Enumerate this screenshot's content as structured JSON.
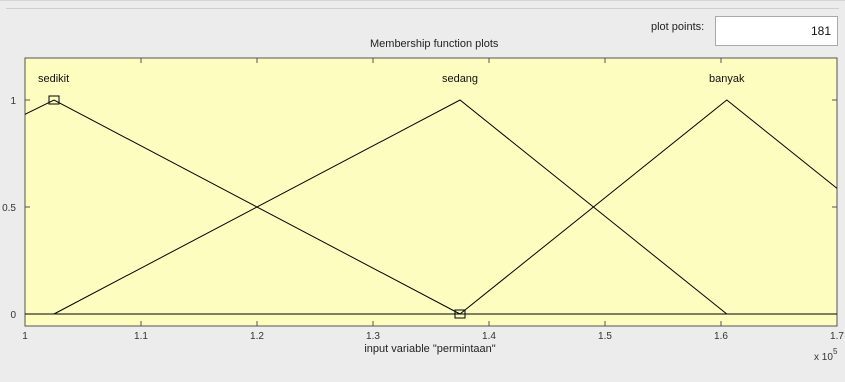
{
  "panel": {
    "title": "Membership function plots",
    "plot_points_label": "plot points:",
    "plot_points_value": "181"
  },
  "axis": {
    "xlabel": "input variable \"permintaan\"",
    "exponent_base": "x 10",
    "exponent_power": "5"
  },
  "colors": {
    "plot_bg": "#fdfdc0",
    "line": "#000000",
    "panel_bg": "#ececec"
  },
  "chart_data": {
    "type": "line",
    "title": "Membership function plots",
    "xlabel": "input variable \"permintaan\"",
    "xlim": [
      1.0,
      1.7
    ],
    "ylim": [
      -0.05,
      1.2
    ],
    "x_ticks": [
      "1",
      "1.1",
      "1.2",
      "1.3",
      "1.4",
      "1.5",
      "1.6",
      "1.7"
    ],
    "y_ticks": [
      "0",
      "0.5",
      "1"
    ],
    "x_tick_values": [
      1.0,
      1.1,
      1.2,
      1.3,
      1.4,
      1.5,
      1.6,
      1.7
    ],
    "y_tick_values": [
      0,
      0.5,
      1
    ],
    "series": [
      {
        "name": "sedikit",
        "x": [
          0.95,
          1.025,
          1.375
        ],
        "y": [
          0.8,
          1,
          0
        ]
      },
      {
        "name": "sedang",
        "x": [
          1.025,
          1.375,
          1.605
        ],
        "y": [
          0,
          1,
          0
        ]
      },
      {
        "name": "banyak",
        "x": [
          1.375,
          1.605,
          1.835
        ],
        "y": [
          0,
          1,
          0
        ]
      }
    ],
    "markers": [
      {
        "x": 1.025,
        "y": 1
      },
      {
        "x": 1.375,
        "y": 0
      }
    ]
  }
}
